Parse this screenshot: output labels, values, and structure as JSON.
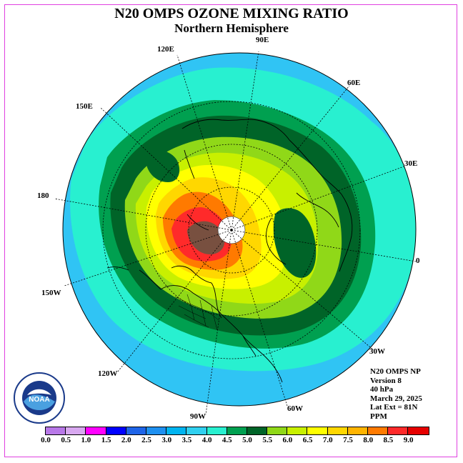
{
  "title": "N20 OMPS OZONE MIXING RATIO",
  "subtitle": "Northern Hemisphere",
  "lon_labels": {
    "e90": "90E",
    "e60": "60E",
    "e30": "30E",
    "zero": "0",
    "w30": "30W",
    "w60": "60W",
    "w90": "90W",
    "w120": "120W",
    "w150": "150W",
    "d180": "180",
    "e150": "150E",
    "e120": "120E"
  },
  "info": {
    "product": "N20 OMPS NP",
    "version": "Version 8",
    "level": "40 hPa",
    "date": "March 29, 2025",
    "lat_ext": "Lat Ext = 81N",
    "units": "PPM"
  },
  "logo_text": "NOAA",
  "colorbar": {
    "ticks": [
      "0.0",
      "0.5",
      "1.0",
      "1.5",
      "2.0",
      "2.5",
      "3.0",
      "3.5",
      "4.0",
      "4.5",
      "5.0",
      "5.5",
      "6.0",
      "6.5",
      "7.0",
      "7.5",
      "8.0",
      "8.5",
      "9.0"
    ],
    "colors": [
      "#b878e8",
      "#d8a8f0",
      "#ff00ff",
      "#0000ff",
      "#1e64e8",
      "#1e90f0",
      "#00b4f0",
      "#30d0f0",
      "#28f0d0",
      "#00a050",
      "#006428",
      "#90d818",
      "#c8f000",
      "#ffff00",
      "#ffd700",
      "#ffb400",
      "#ff7a00",
      "#ff2a2a",
      "#e60000",
      "#785040"
    ]
  },
  "map_colors": {
    "outer": "#30c4f4",
    "ring2": "#28f0d0",
    "ring3": "#00a050",
    "ring4": "#006428",
    "ring5": "#90d818",
    "ring6": "#c8f000",
    "ring7": "#ffff00",
    "ring8": "#ffd700",
    "ring9": "#ffb400",
    "ring10": "#ff7a00",
    "core": "#ff2a2a",
    "brown": "#785040",
    "pole": "#ffffff"
  }
}
